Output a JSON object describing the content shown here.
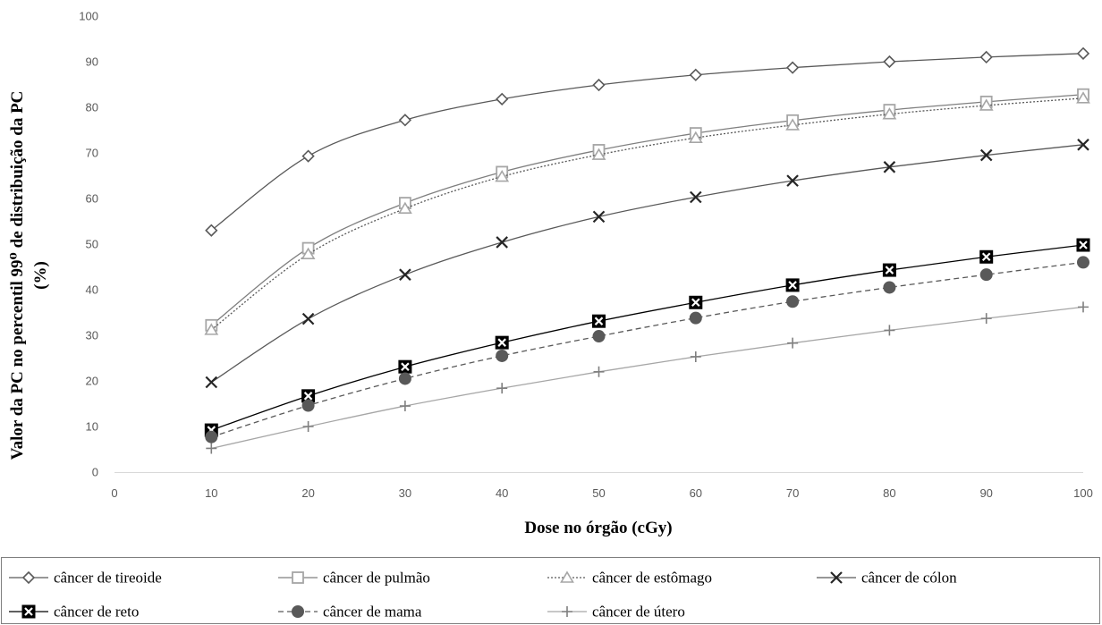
{
  "chart_data": {
    "type": "line",
    "title": "",
    "xlabel": "Dose no órgão (cGy)",
    "ylabel_line1": "Valor da PC no percentil 99⁰ de distribuição  da PC",
    "ylabel_line2": "(%)",
    "xlim": [
      0,
      100
    ],
    "ylim": [
      0,
      100
    ],
    "xticks": [
      0,
      10,
      20,
      30,
      40,
      50,
      60,
      70,
      80,
      90,
      100
    ],
    "yticks": [
      0,
      10,
      20,
      30,
      40,
      50,
      60,
      70,
      80,
      90,
      100
    ],
    "grid": false,
    "legend_position": "bottom",
    "x": [
      10,
      20,
      30,
      40,
      50,
      60,
      70,
      80,
      90,
      100
    ],
    "series": [
      {
        "name": "câncer de tireoide",
        "values": [
          53,
          69.3,
          77.2,
          81.8,
          84.9,
          87.1,
          88.7,
          90,
          91,
          91.8
        ],
        "marker": "diamond",
        "color": "#595959",
        "dash": ""
      },
      {
        "name": "câncer de pulmão",
        "values": [
          32.2,
          49.1,
          59,
          65.8,
          70.6,
          74.3,
          77.1,
          79.4,
          81.2,
          82.8
        ],
        "marker": "square",
        "color": "#7f7f7f",
        "dash": ""
      },
      {
        "name": "câncer de estômago",
        "values": [
          31.2,
          47.8,
          57.8,
          64.8,
          69.6,
          73.3,
          76.1,
          78.5,
          80.4,
          82
        ],
        "marker": "triangle",
        "color": "#595959",
        "dash": "2,2"
      },
      {
        "name": "câncer de cólon",
        "values": [
          19.7,
          33.6,
          43.3,
          50.4,
          56,
          60.3,
          63.9,
          66.9,
          69.5,
          71.8
        ],
        "marker": "x",
        "color": "#595959",
        "dash": ""
      },
      {
        "name": "câncer de reto",
        "values": [
          9.2,
          16.7,
          23.1,
          28.4,
          33.1,
          37.2,
          41,
          44.3,
          47.2,
          49.8
        ],
        "marker": "boxx",
        "color": "#000000",
        "dash": ""
      },
      {
        "name": "câncer de mama",
        "values": [
          7.7,
          14.6,
          20.5,
          25.5,
          29.8,
          33.8,
          37.4,
          40.5,
          43.3,
          46
        ],
        "marker": "circle",
        "color": "#595959",
        "dash": "6,4"
      },
      {
        "name": "câncer de útero",
        "values": [
          5.2,
          10,
          14.5,
          18.4,
          22,
          25.3,
          28.3,
          31.1,
          33.7,
          36.2
        ],
        "marker": "plus",
        "color": "#a6a6a6",
        "dash": ""
      }
    ]
  }
}
